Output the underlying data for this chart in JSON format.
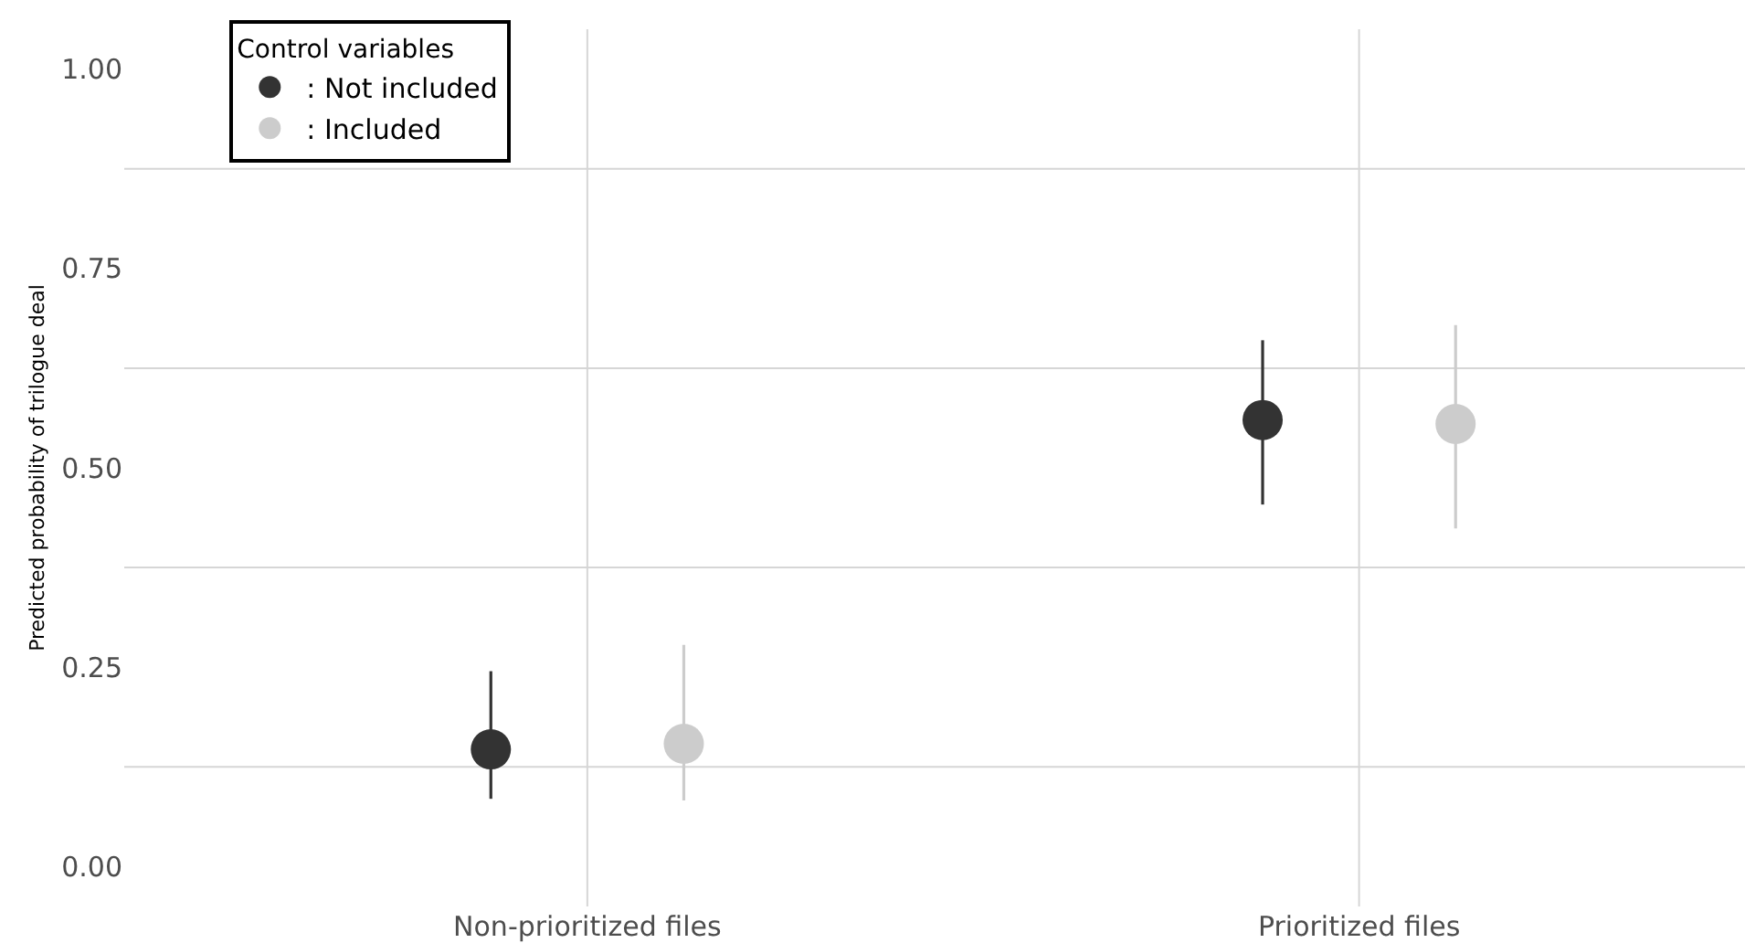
{
  "chart_data": {
    "type": "scatter",
    "ylabel": "Predicted probability of trilogue deal",
    "legend_title": "Control variables",
    "categories": [
      "Non-prioritized files",
      "Prioritized files"
    ],
    "series": [
      {
        "name": ": Not included",
        "color": "#333333",
        "values": [
          0.147,
          0.56
        ],
        "errors": [
          [
            0.085,
            0.245
          ],
          [
            0.454,
            0.66
          ]
        ]
      },
      {
        "name": ": Included",
        "color": "#cccccc",
        "values": [
          0.154,
          0.555
        ],
        "errors": [
          [
            0.083,
            0.278
          ],
          [
            0.424,
            0.679
          ]
        ]
      }
    ],
    "ylim": [
      -0.05,
      1.05
    ],
    "yticks": [
      {
        "value": 0,
        "label": "0.00"
      },
      {
        "value": 0.125,
        "label": null
      },
      0.25,
      {
        "value": 0.375,
        "label": null
      },
      {
        "value": 0.5,
        "label": "0.50"
      },
      {
        "value": 0.625,
        "label": null
      },
      0.75,
      {
        "value": 0.875,
        "label": null
      },
      {
        "value": 1,
        "label": "1.00"
      }
    ],
    "grid": true,
    "legend": "top left",
    "marker": "circle"
  }
}
